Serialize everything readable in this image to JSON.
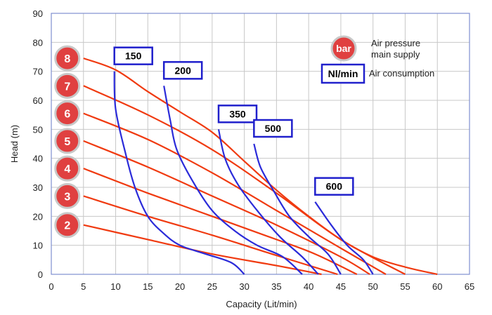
{
  "chart_data": {
    "type": "line",
    "xlabel": "Capacity (Lit/min)",
    "ylabel": "Head (m)",
    "xlim": [
      0,
      65
    ],
    "ylim": [
      0,
      90
    ],
    "xticks": [
      "0",
      "5",
      "10",
      "15",
      "20",
      "25",
      "30",
      "35",
      "40",
      "45",
      "50",
      "55",
      "60",
      "65"
    ],
    "yticks": [
      "0",
      "10",
      "20",
      "30",
      "40",
      "50",
      "60",
      "70",
      "80",
      "90"
    ],
    "grid": true,
    "pressure_curves": [
      {
        "label": "2",
        "points": [
          [
            5,
            17
          ],
          [
            15,
            12
          ],
          [
            25,
            7
          ],
          [
            35,
            3
          ],
          [
            42,
            0
          ]
        ]
      },
      {
        "label": "3",
        "points": [
          [
            5,
            27
          ],
          [
            15,
            20
          ],
          [
            25,
            13.5
          ],
          [
            35,
            6.5
          ],
          [
            44.5,
            0
          ]
        ]
      },
      {
        "label": "4",
        "points": [
          [
            5,
            36.5
          ],
          [
            15,
            28
          ],
          [
            25,
            20
          ],
          [
            35,
            12
          ],
          [
            41,
            7
          ],
          [
            47.5,
            0
          ]
        ]
      },
      {
        "label": "5",
        "points": [
          [
            5,
            46
          ],
          [
            15,
            37
          ],
          [
            25,
            27
          ],
          [
            35,
            17
          ],
          [
            45,
            6
          ],
          [
            49.5,
            0
          ]
        ]
      },
      {
        "label": "6",
        "points": [
          [
            5,
            55.5
          ],
          [
            15,
            46.5
          ],
          [
            25,
            35
          ],
          [
            35,
            22
          ],
          [
            45,
            9
          ],
          [
            52,
            0
          ]
        ]
      },
      {
        "label": "7",
        "points": [
          [
            5,
            65
          ],
          [
            15,
            55
          ],
          [
            25,
            43
          ],
          [
            35,
            28
          ],
          [
            45,
            12
          ],
          [
            55,
            0
          ]
        ]
      },
      {
        "label": "8",
        "points": [
          [
            5,
            74.5
          ],
          [
            10,
            70.5
          ],
          [
            15,
            63
          ],
          [
            20,
            56
          ],
          [
            25,
            49
          ],
          [
            30,
            39
          ],
          [
            35,
            29
          ],
          [
            40,
            20
          ],
          [
            45,
            12
          ],
          [
            50,
            6
          ],
          [
            55,
            2.5
          ],
          [
            60,
            0
          ]
        ]
      }
    ],
    "flow_curves": [
      {
        "label": "150",
        "points": [
          [
            9.8,
            70
          ],
          [
            10,
            57
          ],
          [
            11.5,
            42
          ],
          [
            13,
            30
          ],
          [
            15,
            20
          ],
          [
            17.5,
            14
          ],
          [
            20,
            10
          ],
          [
            24,
            7
          ],
          [
            28,
            4
          ],
          [
            30,
            0
          ]
        ]
      },
      {
        "label": "200",
        "points": [
          [
            17.5,
            65
          ],
          [
            18.5,
            53
          ],
          [
            19.5,
            43
          ],
          [
            22,
            32
          ],
          [
            25,
            22
          ],
          [
            28.5,
            15
          ],
          [
            32,
            10
          ],
          [
            36,
            6
          ],
          [
            39,
            0
          ]
        ]
      },
      {
        "label": "350",
        "points": [
          [
            26,
            50
          ],
          [
            27,
            40
          ],
          [
            29,
            31
          ],
          [
            32,
            22
          ],
          [
            35.5,
            13
          ],
          [
            39,
            6
          ],
          [
            41.5,
            0
          ]
        ]
      },
      {
        "label": "500",
        "points": [
          [
            31.5,
            45
          ],
          [
            32.5,
            37
          ],
          [
            34.5,
            29
          ],
          [
            37,
            20
          ],
          [
            40,
            13
          ],
          [
            43,
            7
          ],
          [
            45,
            0
          ]
        ]
      },
      {
        "label": "600",
        "points": [
          [
            41,
            25
          ],
          [
            43.5,
            17
          ],
          [
            46,
            10
          ],
          [
            48.5,
            5
          ],
          [
            50,
            0
          ]
        ]
      }
    ],
    "legend": {
      "pressure_badge": "bar",
      "pressure_text_line1": "Air pressure",
      "pressure_text_line2": "main supply",
      "flow_box": "Nl/min",
      "flow_text": "Air consumption",
      "placement": "top-right"
    },
    "colors": {
      "pressure_line": "#f03a10",
      "flow_line": "#2b2bd9",
      "badge_fill": "#e04040",
      "box_border": "#2020cc",
      "grid": "#c8c8c8",
      "frame": "#7f8fd0"
    }
  }
}
